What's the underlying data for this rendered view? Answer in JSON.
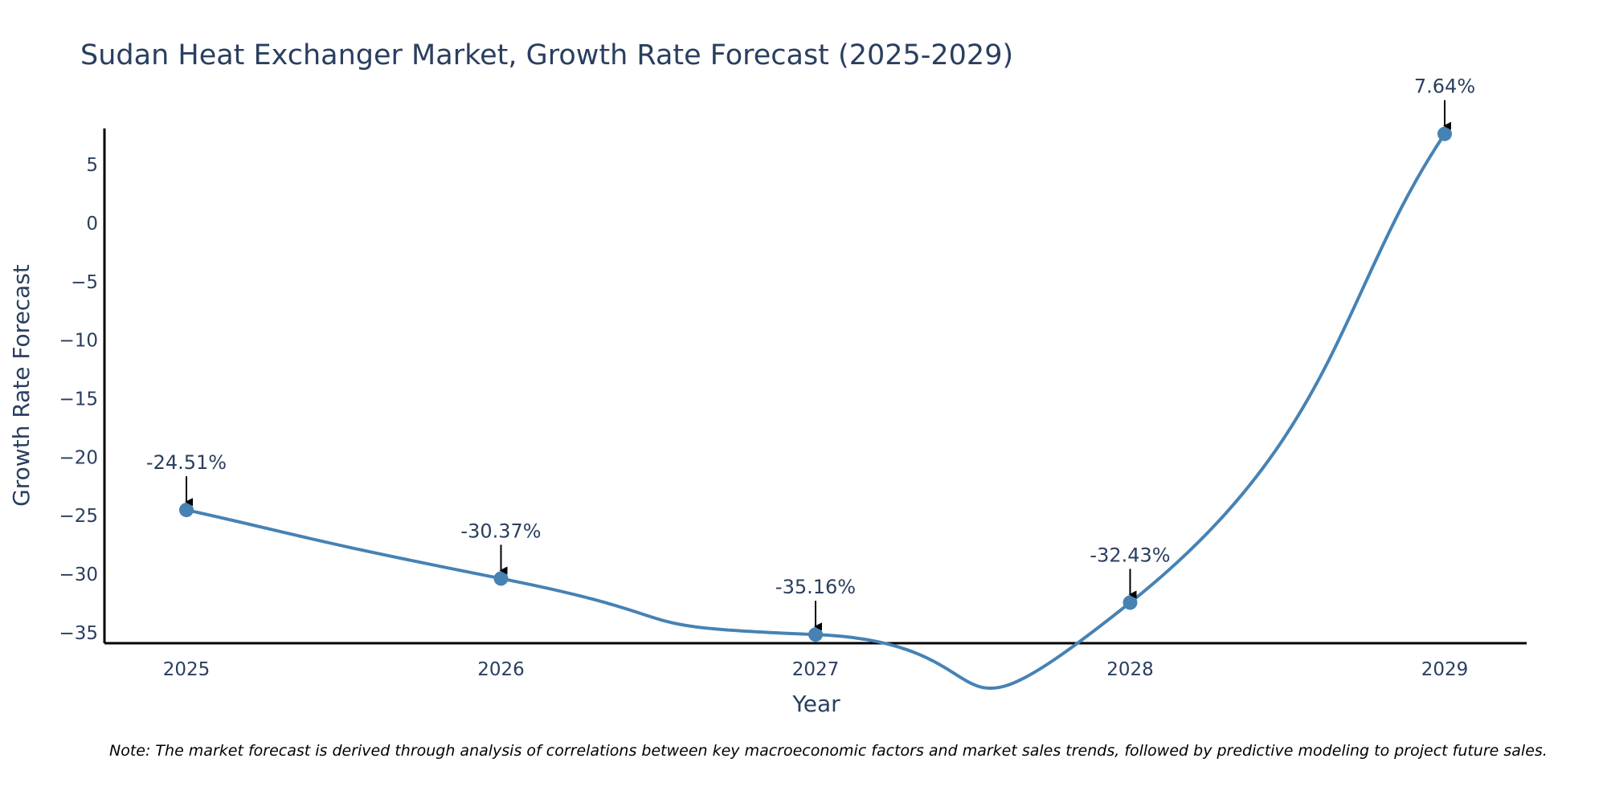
{
  "chart_data": {
    "type": "line",
    "title": "Sudan Heat Exchanger Market, Growth Rate Forecast (2025-2029)",
    "xlabel": "Year",
    "ylabel": "Growth Rate Forecast",
    "categories": [
      "2025",
      "2026",
      "2027",
      "2028",
      "2029"
    ],
    "values": [
      -24.51,
      -30.37,
      -35.16,
      -32.43,
      7.64
    ],
    "data_labels": [
      "-24.51%",
      "-30.37%",
      "-35.16%",
      "-32.43%",
      "7.64%"
    ],
    "ylim": [
      -35.9,
      8.1
    ],
    "yticks": [
      5,
      0,
      -5,
      -10,
      -15,
      -20,
      -25,
      -30,
      -35
    ],
    "ytick_labels": [
      "5",
      "0",
      "−5",
      "−10",
      "−15",
      "−20",
      "−25",
      "−30",
      "−35"
    ],
    "line_shape": "spline",
    "grid": false,
    "series_color": "#4682b4",
    "annotation_arrow_color": "#000000",
    "note": "Note: The market forecast is derived through analysis of correlations between key macroeconomic factors and market sales trends, followed by predictive modeling to project future sales."
  }
}
